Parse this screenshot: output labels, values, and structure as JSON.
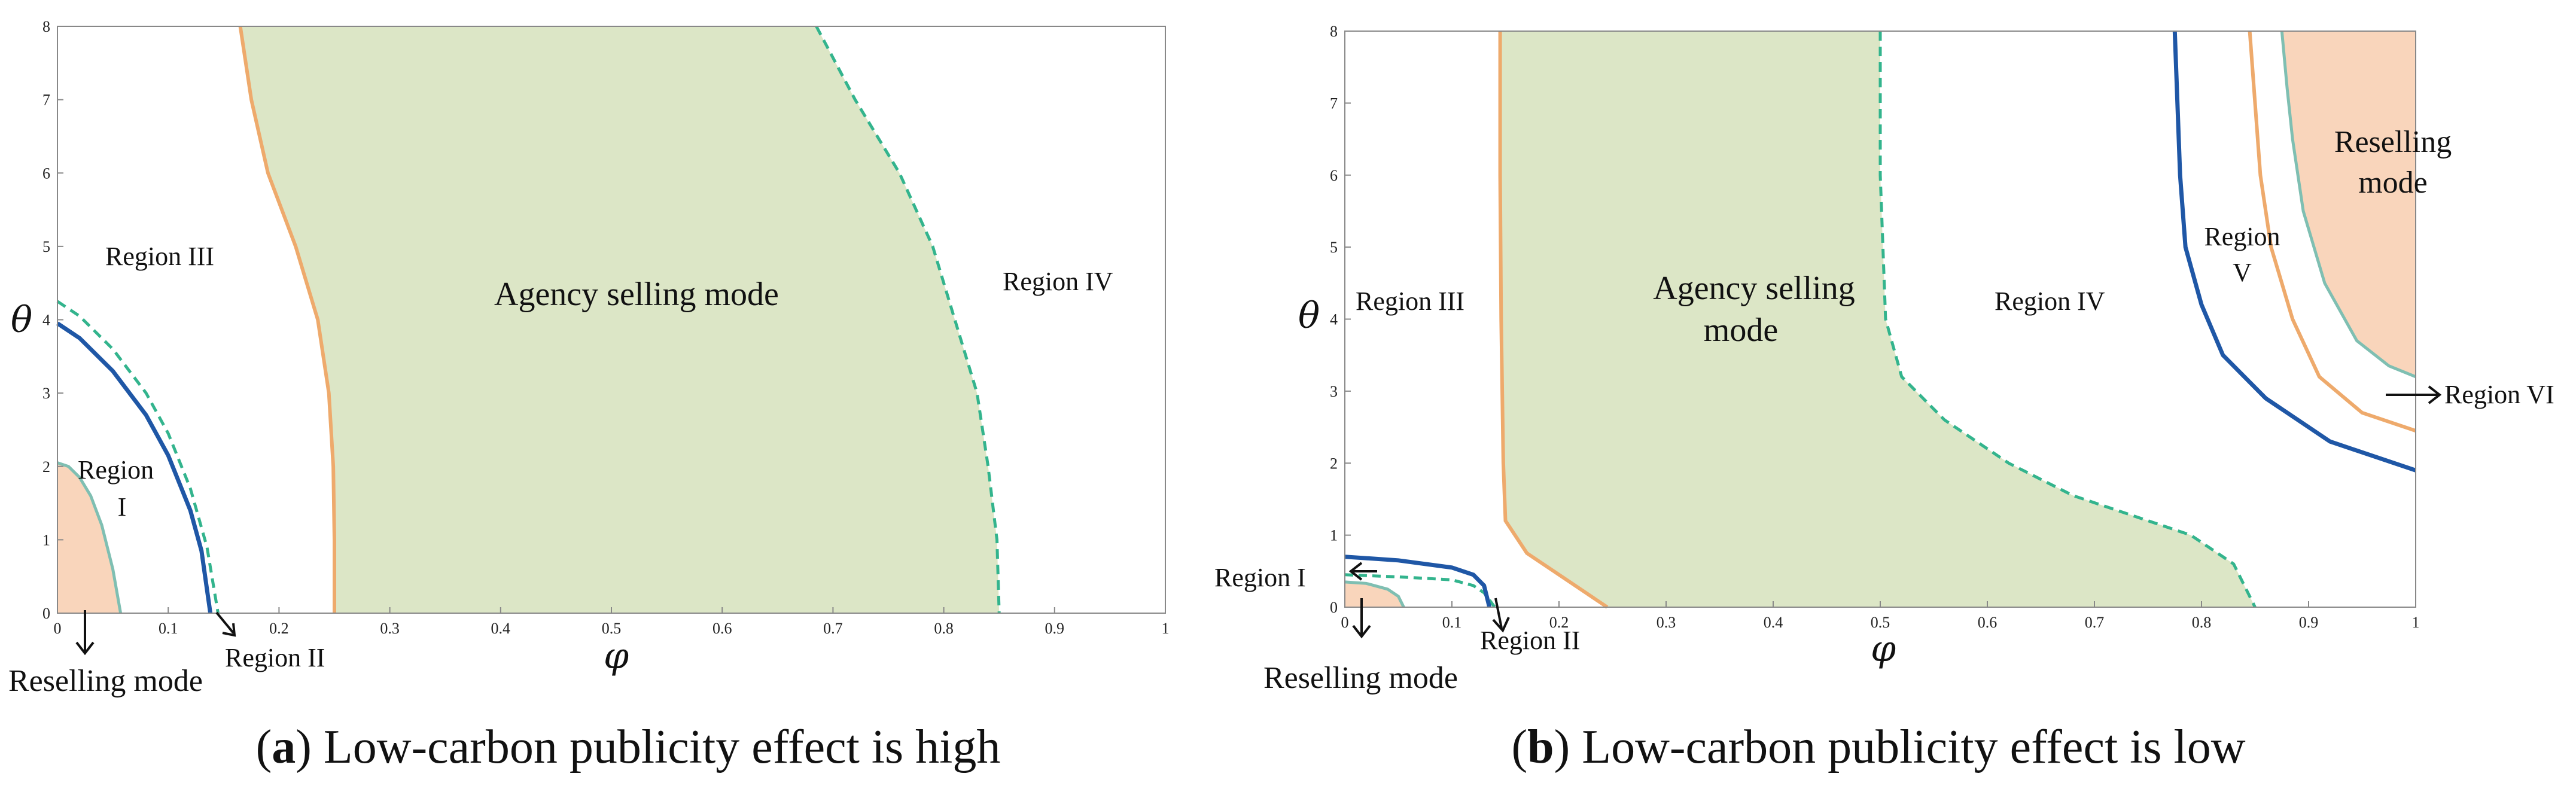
{
  "colors": {
    "agency_fill": "#dce6c6",
    "reselling_fill": "#f9d5bb",
    "blue": "#1f57a6",
    "teal": "#33b48d",
    "orange": "#eeaa6c",
    "teal_light": "#7fbfb2"
  },
  "chart_data": [
    {
      "type": "region",
      "panel": "a",
      "xlabel": "φ",
      "ylabel": "θ",
      "xlim": [
        0,
        1
      ],
      "ylim": [
        0,
        8
      ],
      "xticks": [
        "0",
        "0.1",
        "0.2",
        "0.3",
        "0.4",
        "0.5",
        "0.6",
        "0.7",
        "0.8",
        "0.9",
        "1"
      ],
      "yticks": [
        "0",
        "1",
        "2",
        "3",
        "4",
        "5",
        "6",
        "7",
        "8"
      ],
      "caption_label": "a",
      "caption_text": ") Low-carbon publicity effect is high",
      "caption_open": "(",
      "labels": {
        "region_i_line1": "Region",
        "region_i_line2": "I",
        "region_ii": "Region II",
        "region_iii": "Region III",
        "region_iv": "Region IV",
        "agency": "Agency selling mode",
        "reselling": "Reselling mode"
      },
      "curves": {
        "reselling_boundary": [
          [
            0,
            2.05
          ],
          [
            0.01,
            2.0
          ],
          [
            0.02,
            1.85
          ],
          [
            0.03,
            1.6
          ],
          [
            0.04,
            1.2
          ],
          [
            0.05,
            0.6
          ],
          [
            0.057,
            0
          ]
        ],
        "blue": [
          [
            0,
            3.95
          ],
          [
            0.02,
            3.75
          ],
          [
            0.05,
            3.3
          ],
          [
            0.08,
            2.7
          ],
          [
            0.1,
            2.15
          ],
          [
            0.12,
            1.4
          ],
          [
            0.13,
            0.85
          ],
          [
            0.138,
            0
          ]
        ],
        "teal_dashed": [
          [
            0,
            4.25
          ],
          [
            0.02,
            4.05
          ],
          [
            0.05,
            3.6
          ],
          [
            0.08,
            3.0
          ],
          [
            0.1,
            2.45
          ],
          [
            0.12,
            1.7
          ],
          [
            0.135,
            0.9
          ],
          [
            0.145,
            0
          ]
        ],
        "agency_left": [
          [
            0.165,
            8
          ],
          [
            0.175,
            7.0
          ],
          [
            0.19,
            6.0
          ],
          [
            0.215,
            5.0
          ],
          [
            0.235,
            4.0
          ],
          [
            0.245,
            3.0
          ],
          [
            0.249,
            2.0
          ],
          [
            0.25,
            1.0
          ],
          [
            0.25,
            0
          ]
        ],
        "agency_right": [
          [
            0.685,
            8
          ],
          [
            0.72,
            7.0
          ],
          [
            0.76,
            6.0
          ],
          [
            0.79,
            5.0
          ],
          [
            0.81,
            4.0
          ],
          [
            0.83,
            3.0
          ],
          [
            0.84,
            2.0
          ],
          [
            0.848,
            1.0
          ],
          [
            0.85,
            0
          ]
        ]
      }
    },
    {
      "type": "region",
      "panel": "b",
      "xlabel": "φ",
      "ylabel": "θ",
      "xlim": [
        0,
        1
      ],
      "ylim": [
        0,
        8
      ],
      "xticks": [
        "0",
        "0.1",
        "0.2",
        "0.3",
        "0.4",
        "0.5",
        "0.6",
        "0.7",
        "0.8",
        "0.9",
        "1"
      ],
      "yticks": [
        "0",
        "1",
        "2",
        "3",
        "4",
        "5",
        "6",
        "7",
        "8"
      ],
      "caption_label": "b",
      "caption_text": ") Low-carbon publicity effect is low",
      "caption_open": "(",
      "labels": {
        "region_i": "Region I",
        "region_ii": "Region II",
        "region_iii": "Region III",
        "region_iv": "Region IV",
        "region_v_line1": "Region",
        "region_v_line2": "V",
        "region_vi": "Region VI",
        "agency_line1": "Agency selling",
        "agency_line2": "mode",
        "reselling_bottom": "Reselling mode",
        "reselling_right_line1": "Reselling",
        "reselling_right_line2": "mode"
      },
      "curves": {
        "reselling_boundary": [
          [
            0,
            0.35
          ],
          [
            0.02,
            0.33
          ],
          [
            0.04,
            0.25
          ],
          [
            0.05,
            0.15
          ],
          [
            0.055,
            0
          ]
        ],
        "blue_low": [
          [
            0,
            0.7
          ],
          [
            0.05,
            0.65
          ],
          [
            0.1,
            0.55
          ],
          [
            0.12,
            0.45
          ],
          [
            0.13,
            0.3
          ],
          [
            0.135,
            0
          ]
        ],
        "teal_dashed_low": [
          [
            0,
            0.45
          ],
          [
            0.05,
            0.42
          ],
          [
            0.1,
            0.38
          ],
          [
            0.12,
            0.3
          ],
          [
            0.13,
            0.2
          ],
          [
            0.14,
            0
          ]
        ],
        "agency_left": [
          [
            0.145,
            8
          ],
          [
            0.145,
            6.0
          ],
          [
            0.146,
            4.0
          ],
          [
            0.148,
            2.0
          ],
          [
            0.15,
            1.2
          ],
          [
            0.17,
            0.75
          ],
          [
            0.2,
            0.45
          ],
          [
            0.225,
            0.2
          ],
          [
            0.245,
            0
          ]
        ],
        "agency_right": [
          [
            0.5,
            8
          ],
          [
            0.5,
            6.0
          ],
          [
            0.505,
            4.0
          ],
          [
            0.52,
            3.2
          ],
          [
            0.56,
            2.6
          ],
          [
            0.62,
            2.0
          ],
          [
            0.68,
            1.55
          ],
          [
            0.74,
            1.25
          ],
          [
            0.79,
            1.0
          ],
          [
            0.83,
            0.6
          ],
          [
            0.85,
            0
          ]
        ],
        "blue_right": [
          [
            0.775,
            8
          ],
          [
            0.78,
            6.0
          ],
          [
            0.785,
            5.0
          ],
          [
            0.8,
            4.2
          ],
          [
            0.82,
            3.5
          ],
          [
            0.86,
            2.9
          ],
          [
            0.92,
            2.3
          ],
          [
            1.0,
            1.9
          ]
        ],
        "orange_right": [
          [
            0.845,
            8
          ],
          [
            0.85,
            7.0
          ],
          [
            0.855,
            6.0
          ],
          [
            0.865,
            5.0
          ],
          [
            0.885,
            4.0
          ],
          [
            0.91,
            3.2
          ],
          [
            0.95,
            2.7
          ],
          [
            1.0,
            2.45
          ]
        ],
        "teal_right": [
          [
            0.875,
            8
          ],
          [
            0.88,
            7.2
          ],
          [
            0.885,
            6.5
          ],
          [
            0.895,
            5.5
          ],
          [
            0.915,
            4.5
          ],
          [
            0.945,
            3.7
          ],
          [
            0.975,
            3.35
          ],
          [
            1.0,
            3.2
          ]
        ]
      }
    }
  ]
}
